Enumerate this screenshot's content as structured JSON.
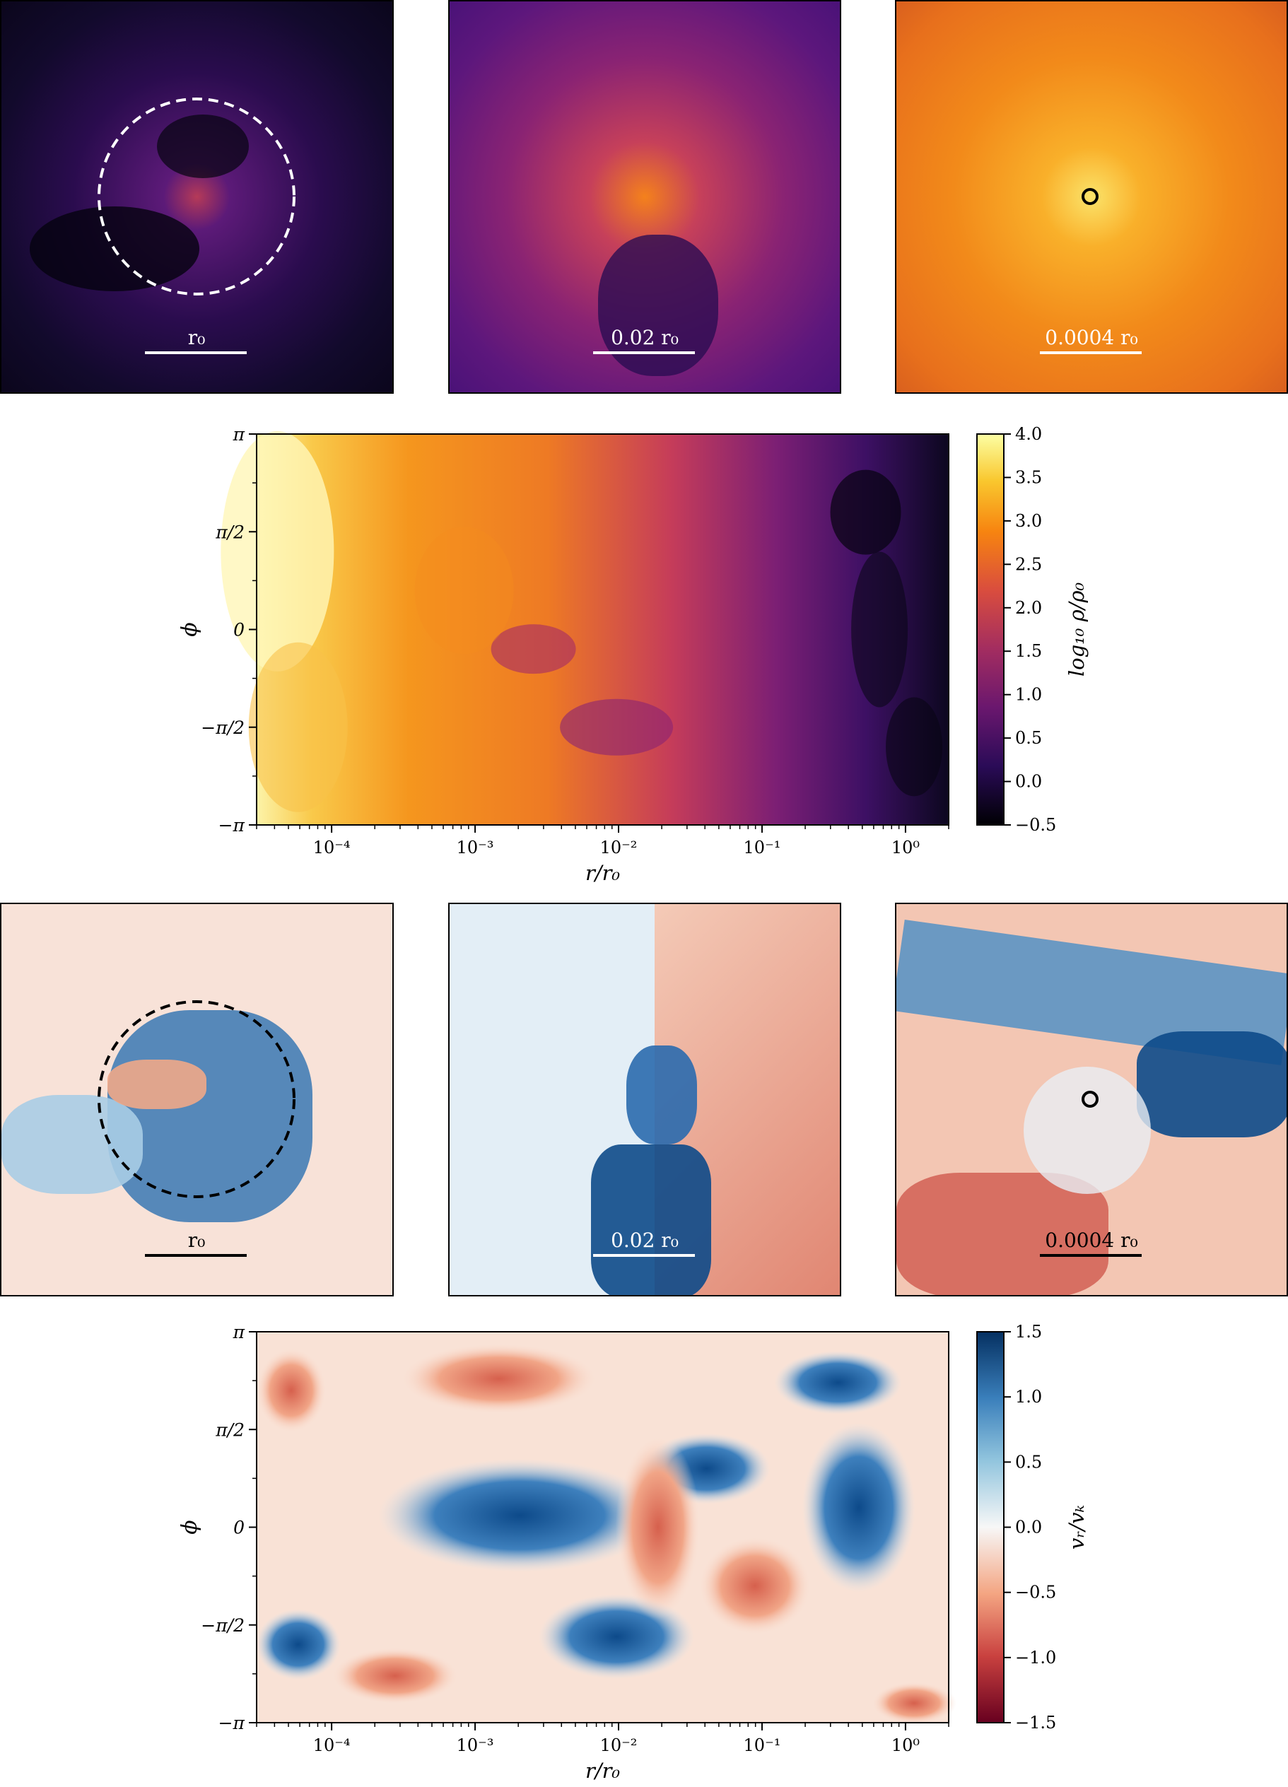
{
  "density_zooms": [
    {
      "scale_label": "r₀",
      "marker": "dashed-circle",
      "marker_color": "#ffffff",
      "bar_color": "#ffffff",
      "text_color": "#ffffff"
    },
    {
      "scale_label": "0.02 r₀",
      "marker": "none",
      "marker_color": "#ffffff",
      "bar_color": "#ffffff",
      "text_color": "#ffffff"
    },
    {
      "scale_label": "0.0004 r₀",
      "marker": "small-circle",
      "marker_color": "#000000",
      "bar_color": "#ffffff",
      "text_color": "#ffffff"
    }
  ],
  "velocity_zooms": [
    {
      "scale_label": "r₀",
      "marker": "dashed-circle",
      "marker_color": "#000000",
      "bar_color": "#000000",
      "text_color": "#000000"
    },
    {
      "scale_label": "0.02 r₀",
      "marker": "none",
      "marker_color": "#000000",
      "bar_color": "#ffffff",
      "text_color": "#ffffff"
    },
    {
      "scale_label": "0.0004 r₀",
      "marker": "small-circle",
      "marker_color": "#000000",
      "bar_color": "#000000",
      "text_color": "#000000"
    }
  ],
  "chart_data": [
    {
      "type": "heatmap",
      "xlabel": "r/r₀",
      "ylabel": "ϕ",
      "xscale": "log",
      "xlim": [
        3e-05,
        2
      ],
      "ylim": [
        -3.1416,
        3.1416
      ],
      "x_ticks": [
        {
          "value": 0.0001,
          "label": "10⁻⁴"
        },
        {
          "value": 0.001,
          "label": "10⁻³"
        },
        {
          "value": 0.01,
          "label": "10⁻²"
        },
        {
          "value": 0.1,
          "label": "10⁻¹"
        },
        {
          "value": 1,
          "label": "10⁰"
        }
      ],
      "y_ticks": [
        {
          "value": 3.1416,
          "label": "π"
        },
        {
          "value": 1.5708,
          "label": "π/2"
        },
        {
          "value": 0,
          "label": "0"
        },
        {
          "value": -1.5708,
          "label": "−π/2"
        },
        {
          "value": -3.1416,
          "label": "−π"
        }
      ],
      "colorbar": {
        "label": "log₁₀ ρ/ρ₀",
        "colormap": "inferno",
        "range": [
          -0.5,
          4.0
        ],
        "ticks": [
          {
            "value": 4.0,
            "label": "4.0"
          },
          {
            "value": 3.5,
            "label": "3.5"
          },
          {
            "value": 3.0,
            "label": "3.0"
          },
          {
            "value": 2.5,
            "label": "2.5"
          },
          {
            "value": 2.0,
            "label": "2.0"
          },
          {
            "value": 1.5,
            "label": "1.5"
          },
          {
            "value": 1.0,
            "label": "1.0"
          },
          {
            "value": 0.5,
            "label": "0.5"
          },
          {
            "value": 0.0,
            "label": "0.0"
          },
          {
            "value": -0.5,
            "label": "−0.5"
          }
        ]
      }
    },
    {
      "type": "heatmap",
      "xlabel": "r/r₀",
      "ylabel": "ϕ",
      "xscale": "log",
      "xlim": [
        3e-05,
        2
      ],
      "ylim": [
        -3.1416,
        3.1416
      ],
      "x_ticks": [
        {
          "value": 0.0001,
          "label": "10⁻⁴"
        },
        {
          "value": 0.001,
          "label": "10⁻³"
        },
        {
          "value": 0.01,
          "label": "10⁻²"
        },
        {
          "value": 0.1,
          "label": "10⁻¹"
        },
        {
          "value": 1,
          "label": "10⁰"
        }
      ],
      "y_ticks": [
        {
          "value": 3.1416,
          "label": "π"
        },
        {
          "value": 1.5708,
          "label": "π/2"
        },
        {
          "value": 0,
          "label": "0"
        },
        {
          "value": -1.5708,
          "label": "−π/2"
        },
        {
          "value": -3.1416,
          "label": "−π"
        }
      ],
      "colorbar": {
        "label": "vᵣ/vₖ",
        "colormap": "RdBu",
        "range": [
          -1.5,
          1.5
        ],
        "ticks": [
          {
            "value": 1.5,
            "label": "1.5"
          },
          {
            "value": 1.0,
            "label": "1.0"
          },
          {
            "value": 0.5,
            "label": "0.5"
          },
          {
            "value": 0.0,
            "label": "0.0"
          },
          {
            "value": -0.5,
            "label": "−0.5"
          },
          {
            "value": -1.0,
            "label": "−1.0"
          },
          {
            "value": -1.5,
            "label": "−1.5"
          }
        ]
      }
    }
  ]
}
